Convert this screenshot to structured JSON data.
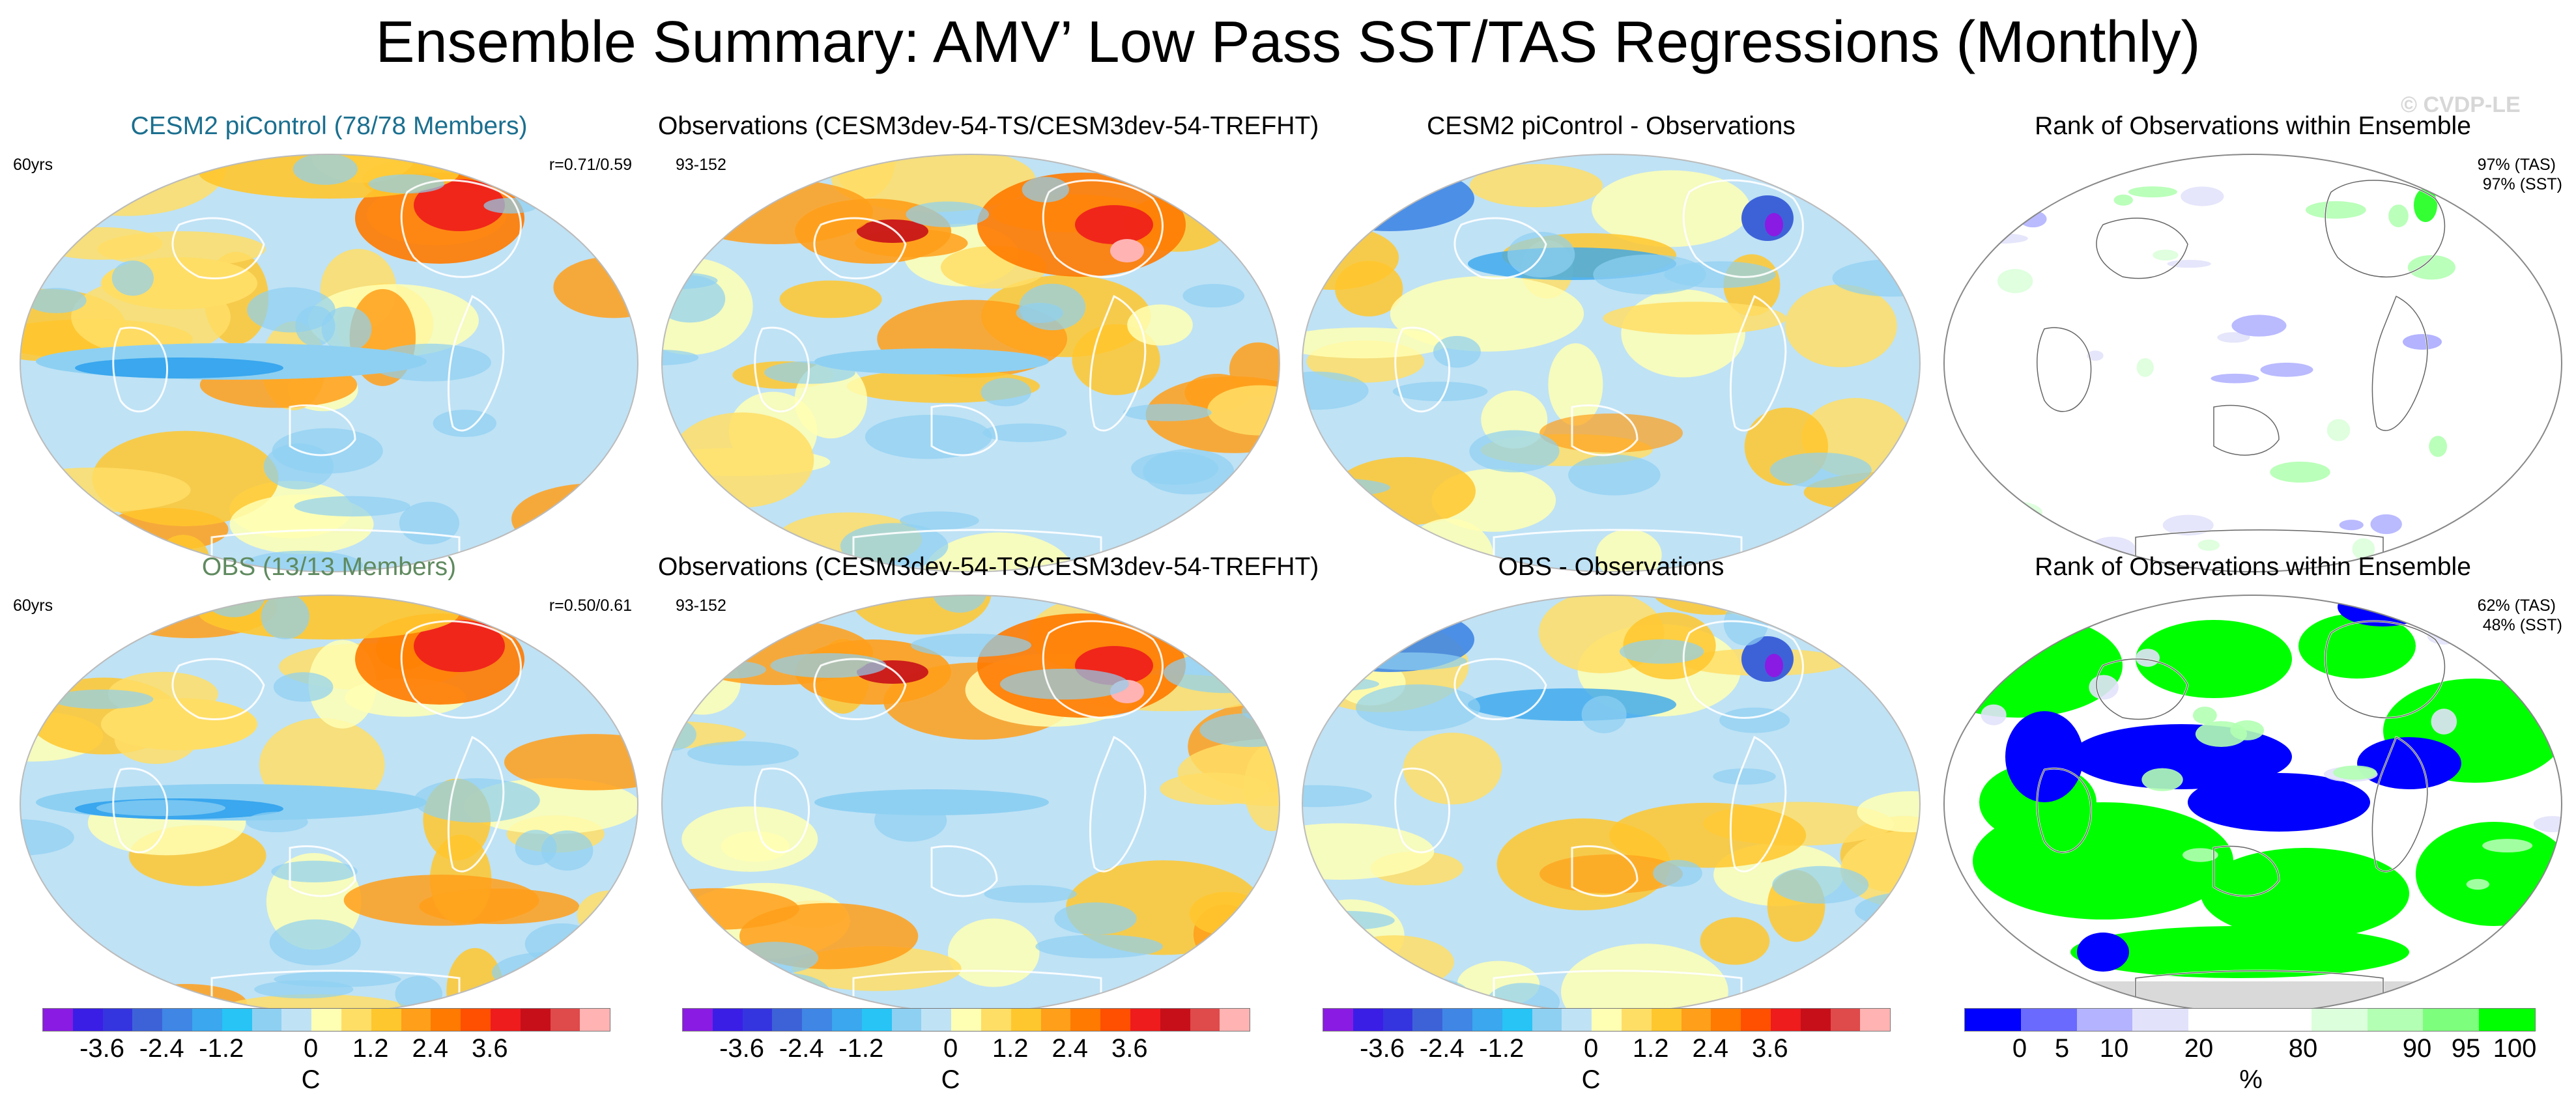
{
  "page": {
    "title": "Ensemble Summary: AMV’ Low Pass SST/TAS Regressions (Monthly)",
    "watermark": "© CVDP-LE"
  },
  "colors": {
    "model_title": "#1b6f8f",
    "obs_title": "#5f8a5f",
    "ocean_neutral": "#bfe2f5",
    "land_outline": "#ffffff"
  },
  "panels": [
    {
      "title": "CESM2 piControl (78/78 Members)",
      "left_note": "60yrs",
      "right_note": "r=0.71/0.59",
      "right_note2": "",
      "kind": "model"
    },
    {
      "title": "Observations (CESM3dev-54-TS/CESM3dev-54-TREFHT)",
      "left_note": "93-152",
      "right_note": "",
      "right_note2": "",
      "kind": "obs"
    },
    {
      "title": "CESM2 piControl - Observations",
      "left_note": "",
      "right_note": "",
      "right_note2": "",
      "kind": "diff"
    },
    {
      "title": "Rank of Observations within Ensemble",
      "left_note": "",
      "right_note": "97% (TAS)",
      "right_note2": "97% (SST)",
      "kind": "rank"
    },
    {
      "title": "OBS (13/13 Members)",
      "left_note": "60yrs",
      "right_note": "r=0.50/0.61",
      "right_note2": "",
      "kind": "model"
    },
    {
      "title": "Observations (CESM3dev-54-TS/CESM3dev-54-TREFHT)",
      "left_note": "93-152",
      "right_note": "",
      "right_note2": "",
      "kind": "obs"
    },
    {
      "title": "OBS - Observations",
      "left_note": "",
      "right_note": "",
      "right_note2": "",
      "kind": "diff"
    },
    {
      "title": "Rank of Observations within Ensemble",
      "left_note": "",
      "right_note": "62% (TAS)",
      "right_note2": "48% (SST)",
      "kind": "rank"
    }
  ],
  "colorbars": [
    {
      "unit": "C",
      "colors": [
        "#8a1be3",
        "#3a1ee6",
        "#3535e0",
        "#3d62d8",
        "#3f86e5",
        "#3aa7ee",
        "#27c4f5",
        "#8ed0f2",
        "#bfe2f5",
        "#ffffb4",
        "#ffde66",
        "#ffc72e",
        "#ff9f1a",
        "#ff7a00",
        "#ff4f00",
        "#ee1c1c",
        "#c70f1a",
        "#df4a4a",
        "#ffb3b3"
      ],
      "labels": [
        "-3.6",
        "-2.4",
        "-1.2",
        "0",
        "1.2",
        "2.4",
        "3.6"
      ]
    },
    {
      "unit": "C",
      "colors": [
        "#8a1be3",
        "#3a1ee6",
        "#3535e0",
        "#3d62d8",
        "#3f86e5",
        "#3aa7ee",
        "#27c4f5",
        "#8ed0f2",
        "#bfe2f5",
        "#ffffb4",
        "#ffde66",
        "#ffc72e",
        "#ff9f1a",
        "#ff7a00",
        "#ff4f00",
        "#ee1c1c",
        "#c70f1a",
        "#df4a4a",
        "#ffb3b3"
      ],
      "labels": [
        "-3.6",
        "-2.4",
        "-1.2",
        "0",
        "1.2",
        "2.4",
        "3.6"
      ]
    },
    {
      "unit": "C",
      "colors": [
        "#8a1be3",
        "#3a1ee6",
        "#3535e0",
        "#3d62d8",
        "#3f86e5",
        "#3aa7ee",
        "#27c4f5",
        "#8ed0f2",
        "#bfe2f5",
        "#ffffb4",
        "#ffde66",
        "#ffc72e",
        "#ff9f1a",
        "#ff7a00",
        "#ff4f00",
        "#ee1c1c",
        "#c70f1a",
        "#df4a4a",
        "#ffb3b3"
      ],
      "labels": [
        "-3.6",
        "-2.4",
        "-1.2",
        "0",
        "1.2",
        "2.4",
        "3.6"
      ]
    },
    {
      "unit": "%",
      "colors": [
        "#0000ff",
        "#6a6aff",
        "#b3b3ff",
        "#e2e2fb",
        "#ffffff",
        "#ffffff",
        "#dcffdc",
        "#b3ffb3",
        "#7dff7d",
        "#00ff00"
      ],
      "labels": [
        "0",
        "5",
        "10",
        "20",
        "80",
        "90",
        "95",
        "100"
      ]
    }
  ]
}
